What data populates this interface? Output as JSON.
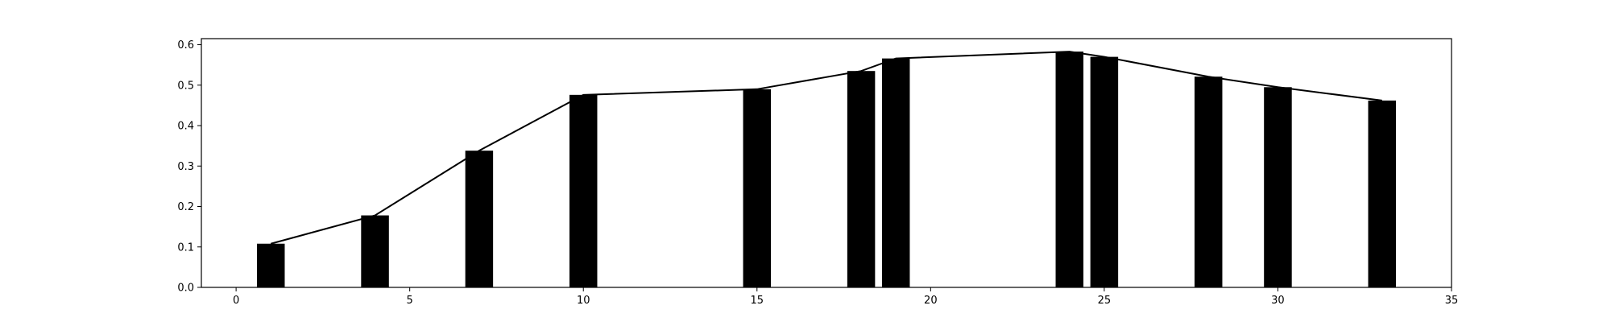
{
  "chart_data": {
    "type": "bar",
    "title": "",
    "xlabel": "",
    "ylabel": "",
    "xlim": [
      -1,
      35
    ],
    "ylim": [
      0,
      0.615
    ],
    "grid": false,
    "bar_color": "#000000",
    "line_color": "#000000",
    "bar_width": 0.8,
    "x": [
      1,
      4,
      7,
      10,
      15,
      18,
      19,
      24,
      25,
      28,
      30,
      33
    ],
    "values": [
      0.108,
      0.178,
      0.338,
      0.476,
      0.49,
      0.535,
      0.566,
      0.583,
      0.57,
      0.521,
      0.495,
      0.462
    ],
    "xticks": [
      0,
      5,
      10,
      15,
      20,
      25,
      30,
      35
    ],
    "xtick_labels": [
      "0",
      "5",
      "10",
      "15",
      "20",
      "25",
      "30",
      "35"
    ],
    "yticks": [
      0.0,
      0.1,
      0.2,
      0.3,
      0.4,
      0.5,
      0.6
    ],
    "ytick_labels": [
      "0.0",
      "0.1",
      "0.2",
      "0.3",
      "0.4",
      "0.5",
      "0.6"
    ],
    "overlay_line": true
  }
}
